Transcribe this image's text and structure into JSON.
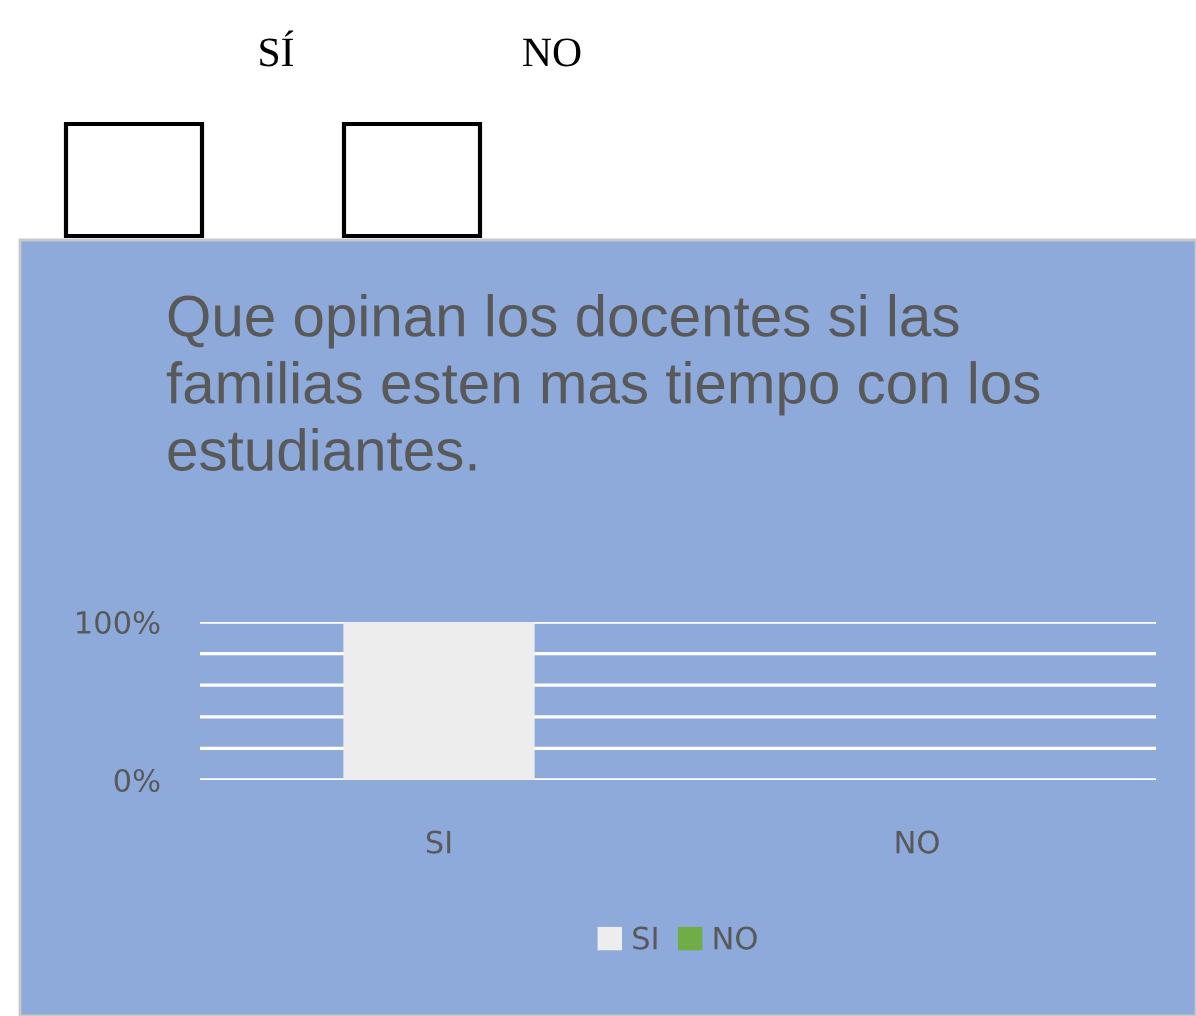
{
  "chart_data": {
    "type": "bar",
    "title": "Que opinan los docentes si las familias esten mas tiempo con los estudiantes.",
    "annotations": [
      "SÍ",
      "NO"
    ],
    "categories": [
      "SI",
      "NO"
    ],
    "series": [
      {
        "name": "SI",
        "color": "#ededed",
        "values": [
          100,
          null
        ]
      },
      {
        "name": "NO",
        "color": "#70ad47",
        "values": [
          null,
          0
        ]
      }
    ],
    "ylim": [
      0,
      100
    ],
    "yticks": [
      {
        "value": 0,
        "label": "0%"
      },
      {
        "value": 20,
        "label": null
      },
      {
        "value": 40,
        "label": null
      },
      {
        "value": 60,
        "label": null
      },
      {
        "value": 80,
        "label": null
      },
      {
        "value": 100,
        "label": "100%"
      }
    ],
    "grid": "y",
    "legend": "bottom"
  }
}
